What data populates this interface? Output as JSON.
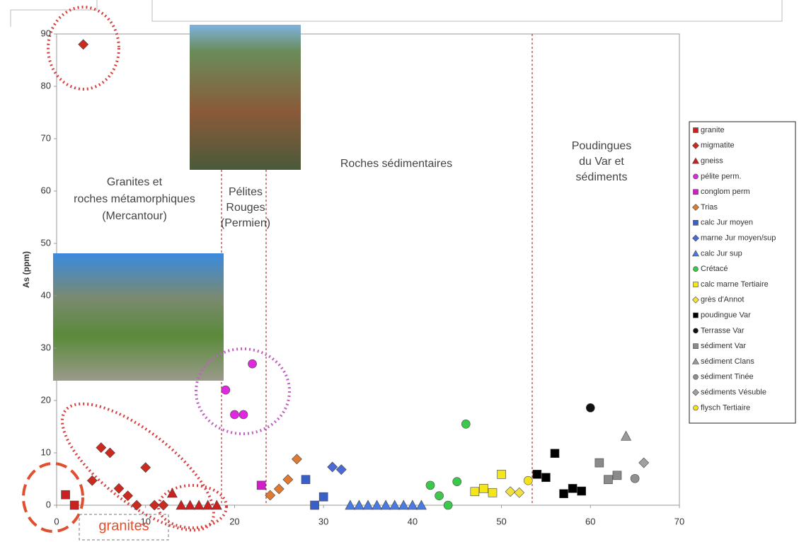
{
  "chart_data": {
    "type": "scatter",
    "y_label": "As (ppm)",
    "xlim": [
      0,
      70
    ],
    "xticks": [
      0,
      10,
      20,
      30,
      40,
      50,
      60,
      70
    ],
    "ylim": [
      0,
      90
    ],
    "yticks": [
      0,
      10,
      20,
      30,
      40,
      50,
      60,
      70,
      80,
      90
    ],
    "annotations": [
      {
        "lines": [
          "Granites et",
          "roches métamorphiques",
          "(Mercantour)"
        ]
      },
      {
        "lines": [
          "Pélites",
          "Rouges",
          "(Permien)"
        ]
      },
      {
        "lines": [
          "Roches sédimentaires"
        ]
      },
      {
        "lines": [
          "Poudingues",
          "du Var et",
          "sédiments"
        ]
      },
      {
        "lines": [
          "granites"
        ]
      }
    ],
    "series": [
      {
        "name": "granite",
        "color": "#cc1f1f",
        "marker": "square",
        "x": [
          1,
          2
        ],
        "y": [
          2,
          0
        ]
      },
      {
        "name": "migmatite",
        "color": "#cc2a1f",
        "marker": "diamond",
        "x": [
          3,
          4,
          5,
          6,
          7,
          8,
          9,
          10,
          11,
          12
        ],
        "y": [
          88,
          4.7,
          11,
          10,
          3.2,
          1.8,
          0,
          7.2,
          0,
          0
        ]
      },
      {
        "name": "gneiss",
        "color": "#cc1f1f",
        "marker": "triangle",
        "x": [
          13,
          14,
          15,
          16,
          17,
          18
        ],
        "y": [
          2.3,
          0,
          0,
          0,
          0,
          0
        ]
      },
      {
        "name": "pélite perm.",
        "color": "#e028e0",
        "marker": "circle",
        "x": [
          19,
          20,
          21,
          22
        ],
        "y": [
          22,
          17.3,
          17.3,
          27
        ]
      },
      {
        "name": "conglom perm",
        "color": "#d01fc8",
        "marker": "square",
        "x": [
          23
        ],
        "y": [
          3.8
        ]
      },
      {
        "name": "Trias",
        "color": "#e07a30",
        "marker": "diamond",
        "x": [
          24,
          25,
          26,
          27
        ],
        "y": [
          1.9,
          3.1,
          4.9,
          8.8
        ]
      },
      {
        "name": "calc Jur moyen",
        "color": "#3a5fc8",
        "marker": "square",
        "x": [
          28,
          29,
          30
        ],
        "y": [
          4.9,
          0,
          1.6
        ]
      },
      {
        "name": "marne Jur moyen/sup",
        "color": "#4a6ad8",
        "marker": "diamond",
        "x": [
          31,
          32
        ],
        "y": [
          7.3,
          6.8
        ]
      },
      {
        "name": "calc Jur sup",
        "color": "#4a7ae0",
        "marker": "triangle",
        "x": [
          33,
          34,
          35,
          36,
          37,
          38,
          39,
          40,
          41
        ],
        "y": [
          0,
          0,
          0,
          0,
          0,
          0,
          0,
          0,
          0
        ]
      },
      {
        "name": "Crétacé",
        "color": "#3cc84a",
        "marker": "circle",
        "x": [
          42,
          43,
          44,
          45,
          46
        ],
        "y": [
          3.8,
          1.8,
          0,
          4.5,
          15.5
        ]
      },
      {
        "name": "calc marne Tertiaire",
        "color": "#f5e61a",
        "marker": "square",
        "x": [
          47,
          48,
          49,
          50
        ],
        "y": [
          2.6,
          3.2,
          2.4,
          5.9
        ]
      },
      {
        "name": "grès d'Annot",
        "color": "#f0e040",
        "marker": "diamond",
        "x": [
          51,
          52
        ],
        "y": [
          2.6,
          2.4
        ]
      },
      {
        "name": "poudingue Var",
        "color": "#000000",
        "marker": "square",
        "x": [
          54,
          55,
          56,
          57,
          58,
          59
        ],
        "y": [
          5.9,
          5.3,
          9.9,
          2.2,
          3.2,
          2.7
        ]
      },
      {
        "name": "Terrasse Var",
        "color": "#111111",
        "marker": "circle",
        "x": [
          60
        ],
        "y": [
          18.6
        ]
      },
      {
        "name": "sédiment Var",
        "color": "#8a8a8a",
        "marker": "square",
        "x": [
          61,
          62,
          63
        ],
        "y": [
          8.1,
          4.9,
          5.7
        ]
      },
      {
        "name": "sédiment Clans",
        "color": "#9a9a9a",
        "marker": "triangle",
        "x": [
          64
        ],
        "y": [
          13.2
        ]
      },
      {
        "name": "sédiment Tinée",
        "color": "#8f8f8f",
        "marker": "circle",
        "x": [
          65
        ],
        "y": [
          5.1
        ]
      },
      {
        "name": "sédiments Vésuble",
        "color": "#a0a0a0",
        "marker": "diamond",
        "x": [
          66
        ],
        "y": [
          8.1
        ]
      },
      {
        "name": "flysch Tertiaire",
        "color": "#f5e020",
        "marker": "circle",
        "x": [
          53
        ],
        "y": [
          4.7
        ]
      }
    ]
  }
}
